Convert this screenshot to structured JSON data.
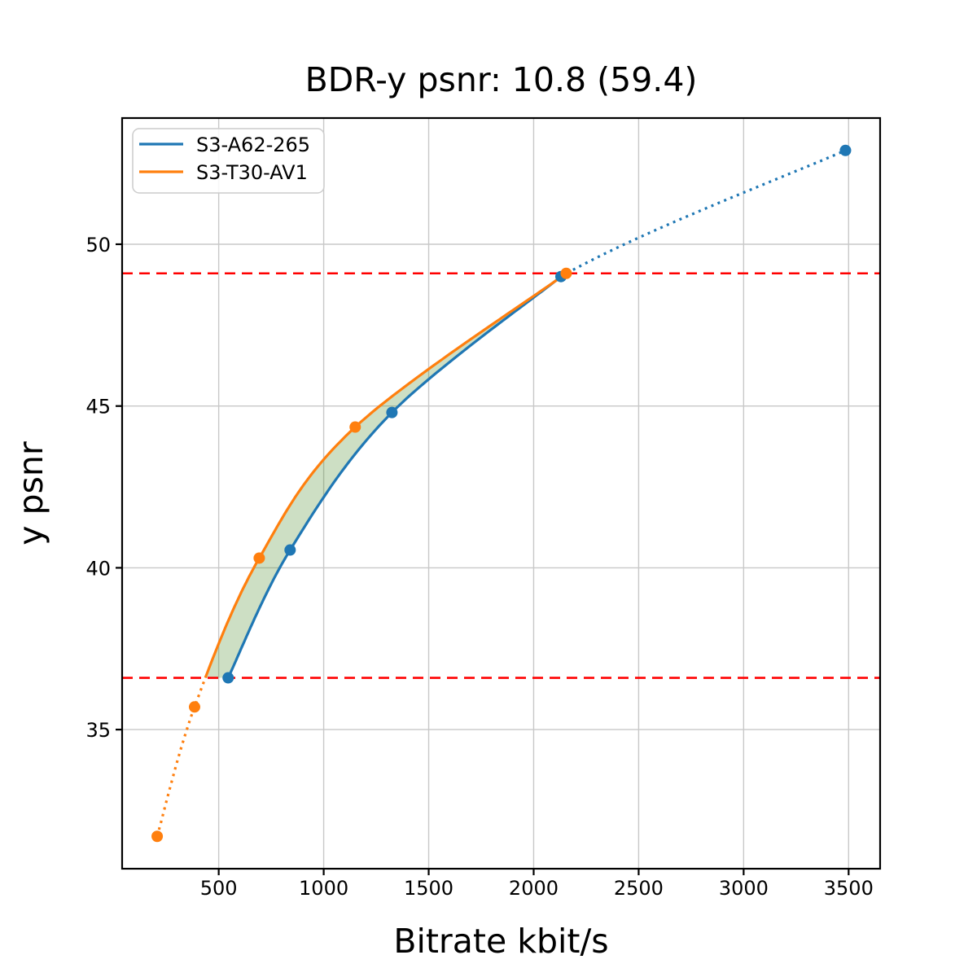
{
  "figure_title": "BDR-y psnr: 10.8 (59.4)",
  "chart_data": {
    "type": "line",
    "title": "BDR-y psnr: 10.8 (59.4)",
    "xlabel": "Bitrate kbit/s",
    "ylabel": "y psnr",
    "xlim": [
      40,
      3650
    ],
    "ylim": [
      30.7,
      53.9
    ],
    "xticks": [
      500,
      1000,
      1500,
      2000,
      2500,
      3000,
      3500
    ],
    "yticks": [
      35,
      40,
      45,
      50
    ],
    "grid": true,
    "grid_color": "#c8c8c8",
    "legend": {
      "position": "upper left"
    },
    "series": [
      {
        "name": "S3-A62-265",
        "color": "#1f77b4",
        "points": [
          [
            545,
            36.6
          ],
          [
            840,
            40.55
          ],
          [
            1325,
            44.8
          ],
          [
            2130,
            49.0
          ],
          [
            3485,
            52.9
          ]
        ],
        "dotted_after_point_index": 3
      },
      {
        "name": "S3-T30-AV1",
        "color": "#ff7f0e",
        "points": [
          [
            207,
            31.7
          ],
          [
            385,
            35.7
          ],
          [
            693,
            40.3
          ],
          [
            1150,
            44.35
          ],
          [
            2155,
            49.1
          ]
        ],
        "dotted_below_psnr": 36.6
      }
    ],
    "overlap_range": {
      "y_low": 36.6,
      "y_high": 49.1,
      "line_color": "#ff0000",
      "line_style": "dashed"
    },
    "bd_shade": {
      "color": "#4a8c2a",
      "alpha": 0.28
    }
  }
}
